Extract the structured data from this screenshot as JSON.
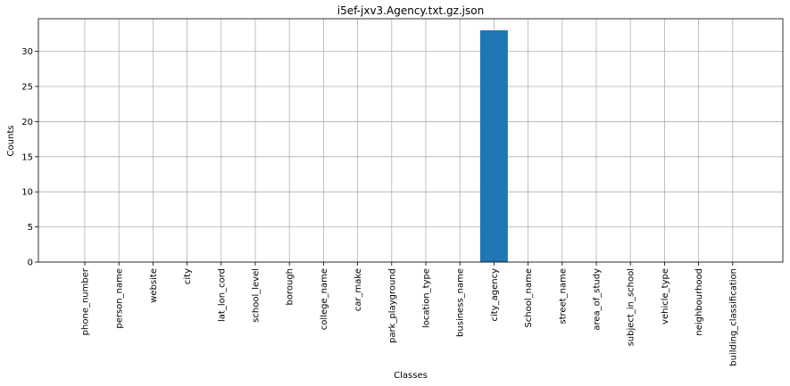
{
  "chart_data": {
    "type": "bar",
    "title": "i5ef-jxv3.Agency.txt.gz.json",
    "xlabel": "Classes",
    "ylabel": "Counts",
    "categories": [
      "phone_number",
      "person_name",
      "website",
      "city",
      "lat_lon_cord",
      "school_level",
      "borough",
      "college_name",
      "car_make",
      "park_playground",
      "location_type",
      "business_name",
      "city_agency",
      "School_name",
      "street_name",
      "area_of_study",
      "subject_in_school",
      "vehicle_type",
      "neighbourhood",
      "building_classification"
    ],
    "values": [
      0,
      0,
      0,
      0,
      0,
      0,
      0,
      0,
      0,
      0,
      0,
      0,
      33,
      0,
      0,
      0,
      0,
      0,
      0,
      0
    ],
    "ylim": [
      0,
      34.65
    ],
    "yticks": [
      0,
      5,
      10,
      15,
      20,
      25,
      30
    ],
    "grid": true,
    "bar_color": "#1f77b4"
  }
}
